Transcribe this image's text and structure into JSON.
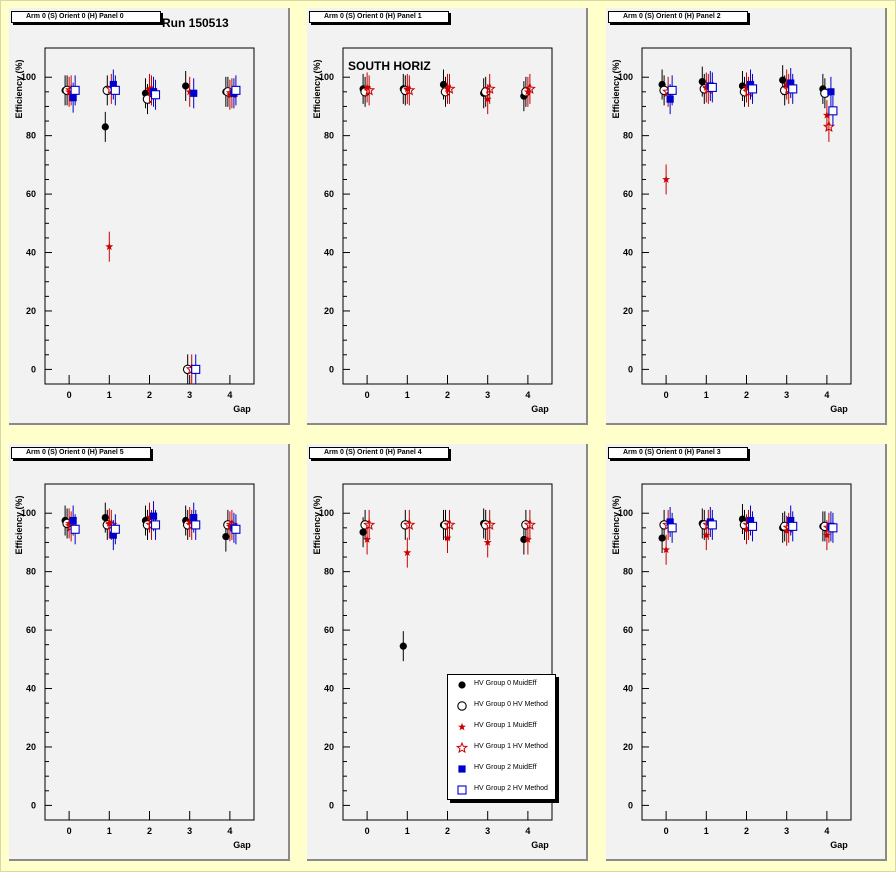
{
  "canvas": {
    "background": "#ffffcc"
  },
  "run_label": "Run 150513",
  "south_label": "SOUTH HORIZ",
  "axis": {
    "xlabel": "Gap",
    "ylabel": "Efficiency (%)",
    "xticks": [
      "0",
      "1",
      "2",
      "3",
      "4"
    ],
    "yticks": [
      "0",
      "20",
      "40",
      "60",
      "80",
      "100"
    ],
    "xlim": [
      -0.6,
      4.6
    ],
    "ylim": [
      -5,
      110
    ]
  },
  "series_style": [
    {
      "name": "HV Group 0 MuidEff",
      "marker": "filled-circle",
      "color": "#000000",
      "offset": -0.1
    },
    {
      "name": "HV Group 0 HV Method",
      "marker": "open-circle",
      "color": "#000000",
      "offset": -0.05
    },
    {
      "name": "HV Group 1 MuidEff",
      "marker": "filled-star",
      "color": "#cc0000",
      "offset": 0.0
    },
    {
      "name": "HV Group 1 HV Method",
      "marker": "open-star",
      "color": "#cc0000",
      "offset": 0.05
    },
    {
      "name": "HV Group 2 MuidEff",
      "marker": "filled-square",
      "color": "#0000cc",
      "offset": 0.1
    },
    {
      "name": "HV Group 2 HV Method",
      "marker": "open-square",
      "color": "#0000cc",
      "offset": 0.15
    }
  ],
  "legend": {
    "entries": [
      "HV Group 0 MuidEff",
      "HV Group 0 HV Method",
      "HV Group 1 MuidEff",
      "HV Group 1 HV Method",
      "HV Group 2 MuidEff",
      "HV Group 2 HV Method"
    ]
  },
  "chart_data": [
    {
      "type": "scatter",
      "title": "Arm 0 (S) Orient 0 (H) Panel 0",
      "x": [
        0,
        1,
        2,
        3,
        4
      ],
      "series": [
        {
          "name": "HV Group 0 MuidEff",
          "values": [
            95.5,
            83,
            94.5,
            97,
            95
          ]
        },
        {
          "name": "HV Group 0 HV Method",
          "values": [
            95.5,
            95.5,
            92.5,
            0,
            95
          ]
        },
        {
          "name": "HV Group 1 MuidEff",
          "values": [
            95,
            42,
            96,
            95,
            94
          ]
        },
        {
          "name": "HV Group 1 HV Method",
          "values": [
            95.5,
            96,
            95.5,
            0,
            94.5
          ]
        },
        {
          "name": "HV Group 2 MuidEff",
          "values": [
            93,
            97.5,
            95,
            94.5,
            94.5
          ]
        },
        {
          "name": "HV Group 2 HV Method",
          "values": [
            95.5,
            95.5,
            94,
            0,
            95.5
          ]
        }
      ]
    },
    {
      "type": "scatter",
      "title": "Arm 0 (S) Orient 0 (H) Panel 1",
      "x": [
        0,
        1,
        2,
        3,
        4
      ],
      "series": [
        {
          "name": "HV Group 0 MuidEff",
          "values": [
            96,
            96,
            97.5,
            94.5,
            93.5
          ]
        },
        {
          "name": "HV Group 0 HV Method",
          "values": [
            95,
            95.5,
            95,
            95,
            95
          ]
        },
        {
          "name": "HV Group 1 MuidEff",
          "values": [
            96.5,
            96,
            96,
            92.5,
            95
          ]
        },
        {
          "name": "HV Group 1 HV Method",
          "values": [
            95.5,
            95.5,
            96,
            96,
            96
          ]
        },
        {
          "name": "HV Group 2 MuidEff",
          "values": []
        },
        {
          "name": "HV Group 2 HV Method",
          "values": []
        }
      ]
    },
    {
      "type": "scatter",
      "title": "Arm 0 (S) Orient 0 (H) Panel 2",
      "x": [
        0,
        1,
        2,
        3,
        4
      ],
      "series": [
        {
          "name": "HV Group 0 MuidEff",
          "values": [
            97.5,
            98.5,
            97,
            99,
            96
          ]
        },
        {
          "name": "HV Group 0 HV Method",
          "values": [
            95.5,
            96,
            95,
            95.5,
            94.5
          ]
        },
        {
          "name": "HV Group 1 MuidEff",
          "values": [
            65,
            96.5,
            96.5,
            97.5,
            87
          ]
        },
        {
          "name": "HV Group 1 HV Method",
          "values": [
            95,
            96,
            95,
            96,
            83
          ]
        },
        {
          "name": "HV Group 2 MuidEff",
          "values": [
            92.5,
            97,
            97.5,
            98,
            95
          ]
        },
        {
          "name": "HV Group 2 HV Method",
          "values": [
            95.5,
            96.5,
            96,
            96,
            88.5
          ]
        }
      ]
    },
    {
      "type": "scatter",
      "title": "Arm 0 (S) Orient 0 (H) Panel 5",
      "x": [
        0,
        1,
        2,
        3,
        4
      ],
      "series": [
        {
          "name": "HV Group 0 MuidEff",
          "values": [
            97.5,
            98.5,
            97.5,
            97.5,
            92
          ]
        },
        {
          "name": "HV Group 0 HV Method",
          "values": [
            96.5,
            96,
            96,
            96,
            96
          ]
        },
        {
          "name": "HV Group 1 MuidEff",
          "values": [
            96.5,
            96.5,
            98.5,
            97,
            95.5
          ]
        },
        {
          "name": "HV Group 1 HV Method",
          "values": [
            95.5,
            96,
            96,
            96,
            96
          ]
        },
        {
          "name": "HV Group 2 MuidEff",
          "values": [
            97.5,
            92.5,
            99,
            98.5,
            95
          ]
        },
        {
          "name": "HV Group 2 HV Method",
          "values": [
            94.5,
            94.5,
            96,
            96,
            94.5
          ]
        }
      ]
    },
    {
      "type": "scatter",
      "title": "Arm 0 (S) Orient 0 (H) Panel 4",
      "x": [
        0,
        1,
        2,
        3,
        4
      ],
      "series": [
        {
          "name": "HV Group 0 MuidEff",
          "values": [
            93.5,
            54.5,
            96,
            96.5,
            91
          ]
        },
        {
          "name": "HV Group 0 HV Method",
          "values": [
            96,
            96,
            96,
            96,
            96
          ]
        },
        {
          "name": "HV Group 1 MuidEff",
          "values": [
            91,
            86.5,
            91.5,
            90,
            91
          ]
        },
        {
          "name": "HV Group 1 HV Method",
          "values": [
            96,
            96,
            96,
            96,
            96
          ]
        },
        {
          "name": "HV Group 2 MuidEff",
          "values": []
        },
        {
          "name": "HV Group 2 HV Method",
          "values": []
        }
      ]
    },
    {
      "type": "scatter",
      "title": "Arm 0 (S) Orient 0 (H) Panel 3",
      "x": [
        0,
        1,
        2,
        3,
        4
      ],
      "series": [
        {
          "name": "HV Group 0 MuidEff",
          "values": [
            91.5,
            96.5,
            98,
            95,
            95.5
          ]
        },
        {
          "name": "HV Group 0 HV Method",
          "values": [
            96,
            96,
            96,
            95.5,
            95.5
          ]
        },
        {
          "name": "HV Group 1 MuidEff",
          "values": [
            87.5,
            92.5,
            94.5,
            94,
            92.5
          ]
        },
        {
          "name": "HV Group 1 HV Method",
          "values": [
            96,
            96,
            96,
            95,
            95
          ]
        },
        {
          "name": "HV Group 2 MuidEff",
          "values": [
            97,
            97,
            97.5,
            97.5,
            95.5
          ]
        },
        {
          "name": "HV Group 2 HV Method",
          "values": [
            95,
            96,
            95.5,
            95.5,
            95
          ]
        }
      ]
    }
  ]
}
